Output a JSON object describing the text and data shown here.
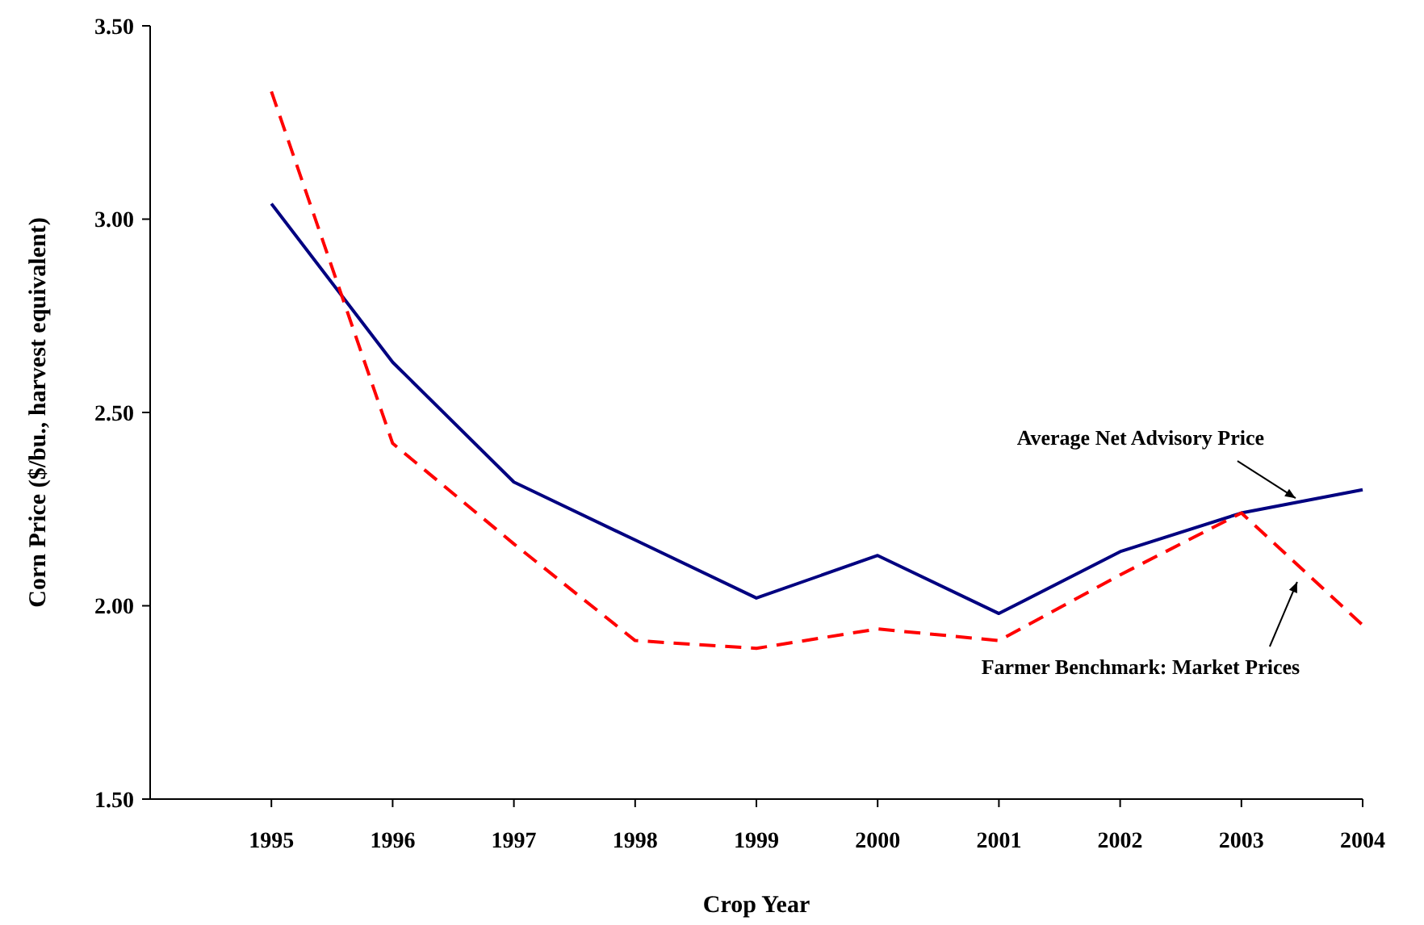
{
  "chart_data": {
    "type": "line",
    "xlabel": "Crop Year",
    "ylabel": "Corn Price ($/bu., harvest equivalent)",
    "x": [
      1995,
      1996,
      1997,
      1998,
      1999,
      2000,
      2001,
      2002,
      2003,
      2004
    ],
    "xlim": [
      1994,
      2004
    ],
    "xticks": [
      1995,
      1996,
      1997,
      1998,
      1999,
      2000,
      2001,
      2002,
      2003,
      2004
    ],
    "ylim": [
      1.5,
      3.5
    ],
    "yticks": [
      {
        "value": 1.5,
        "label": "1.50"
      },
      {
        "value": 2,
        "label": "2.00"
      },
      {
        "value": 2.5,
        "label": "2.50"
      },
      {
        "value": 3,
        "label": "3.00"
      },
      {
        "value": 3.5,
        "label": "3.50"
      }
    ],
    "grid": false,
    "marker": "none",
    "series": [
      {
        "name": "Average Net Advisory Price",
        "color": "#000080",
        "line_style": "solid",
        "values": [
          3.04,
          2.63,
          2.32,
          2.17,
          2.02,
          2.13,
          1.98,
          2.14,
          2.24,
          2.3
        ]
      },
      {
        "name": "Farmer Benchmark: Market Prices",
        "color": "#ff0000",
        "line_style": "dashed",
        "values": [
          3.33,
          2.42,
          2.16,
          1.91,
          1.89,
          1.94,
          1.91,
          2.08,
          2.24,
          1.95
        ]
      }
    ]
  }
}
